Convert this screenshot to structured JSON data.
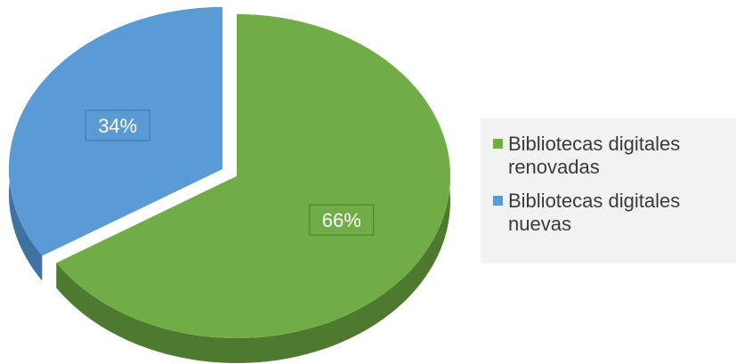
{
  "chart_data": {
    "type": "pie",
    "three_d": true,
    "exploded": true,
    "slices": [
      {
        "label": "Bibliotecas digitales renovadas",
        "value": 66,
        "data_label": "66%",
        "color": "#70ad47",
        "side_color": "#4e7a2f"
      },
      {
        "label": "Bibliotecas digitales nuevas",
        "value": 34,
        "data_label": "34%",
        "color": "#5b9bd5",
        "side_color": "#3f72a3"
      }
    ],
    "legend_position": "right"
  }
}
